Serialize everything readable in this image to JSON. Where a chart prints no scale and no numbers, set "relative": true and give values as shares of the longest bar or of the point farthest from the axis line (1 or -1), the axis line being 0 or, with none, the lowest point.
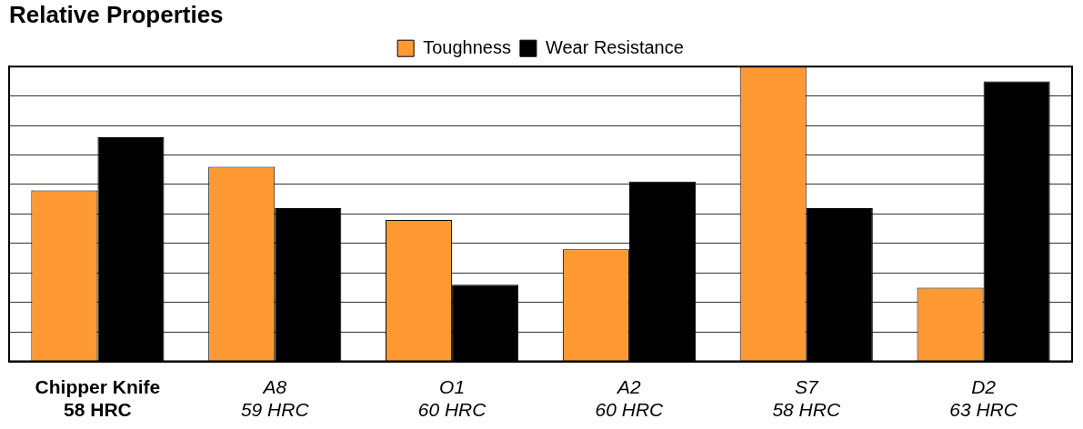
{
  "chart_data": {
    "type": "bar",
    "title": "Relative Properties",
    "relative": true,
    "grid": "y",
    "legend": "top",
    "categories": [
      "Chipper Knife\n58 HRC",
      "A8\n59 HRC",
      "O1\n60 HRC",
      "A2\n60 HRC",
      "S7\n58 HRC",
      "D2\n63 HRC"
    ],
    "series": [
      {
        "name": "Toughness",
        "color": "#ff9933",
        "values": [
          0.58,
          0.66,
          0.48,
          0.38,
          1,
          0.25
        ]
      },
      {
        "name": "Wear Resistance",
        "color": "#000000",
        "values": [
          0.76,
          0.52,
          0.26,
          0.61,
          0.52,
          0.95
        ]
      }
    ]
  }
}
